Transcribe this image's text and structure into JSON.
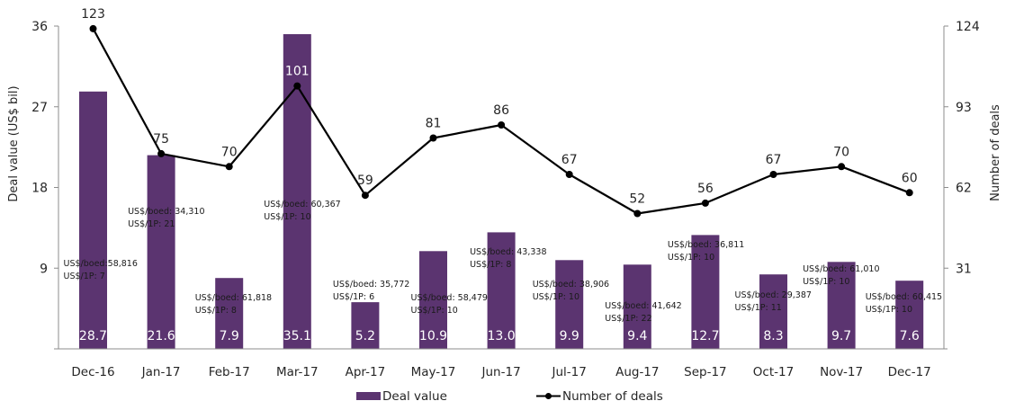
{
  "chart_data": {
    "type": "bar",
    "title": "",
    "categories": [
      "Dec-16",
      "Jan-17",
      "Feb-17",
      "Mar-17",
      "Apr-17",
      "May-17",
      "Jun-17",
      "Jul-17",
      "Aug-17",
      "Sep-17",
      "Oct-17",
      "Nov-17",
      "Dec-17"
    ],
    "series": [
      {
        "name": "Deal value",
        "type": "bar",
        "axis": "left",
        "color": "#5B3470",
        "values": [
          28.7,
          21.6,
          7.9,
          35.1,
          5.2,
          10.9,
          13.0,
          9.9,
          9.4,
          12.7,
          8.3,
          9.7,
          7.6
        ],
        "value_labels": [
          "28.7",
          "21.6",
          "7.9",
          "35.1",
          "5.2",
          "10.9",
          "13.0",
          "9.9",
          "9.4",
          "12.7",
          "8.3",
          "9.7",
          "7.6"
        ]
      },
      {
        "name": "Number of deals",
        "type": "line",
        "axis": "right",
        "color": "#000000",
        "values": [
          123,
          75,
          70,
          101,
          59,
          81,
          86,
          67,
          52,
          56,
          67,
          70,
          60
        ],
        "value_labels": [
          "123",
          "75",
          "70",
          "101",
          "59",
          "81",
          "86",
          "67",
          "52",
          "56",
          "67",
          "70",
          "60"
        ]
      }
    ],
    "annotations": [
      {
        "boed": "US$/boed:58,816",
        "onep": "US$/1P: 7"
      },
      {
        "boed": "US$/boed: 34,310",
        "onep": "US$/1P: 21"
      },
      {
        "boed": "US$/boed: 61,818",
        "onep": "US$/1P: 8"
      },
      {
        "boed": "US$/boed: 60,367",
        "onep": "US$/1P: 10"
      },
      {
        "boed": "US$/boed: 35,772",
        "onep": "US$/1P: 6"
      },
      {
        "boed": "US$/boed: 58,479",
        "onep": "US$/1P: 10"
      },
      {
        "boed": "US$/boed: 43,338",
        "onep": "US$/1P: 8"
      },
      {
        "boed": "US$/boed: 38,906",
        "onep": "US$/1P: 10"
      },
      {
        "boed": "US$/boed: 41,642",
        "onep": "US$/1P: 22"
      },
      {
        "boed": "US$/boed: 36,811",
        "onep": "US$/1P: 10"
      },
      {
        "boed": "US$/boed: 29,387",
        "onep": "US$/1P: 11"
      },
      {
        "boed": "US$/boed: 61,010",
        "onep": "US$/1P: 10"
      },
      {
        "boed": "US$/boed: 60,415",
        "onep": "US$/1P: 10"
      }
    ],
    "y_left": {
      "label": "Deal value (US$ bil)",
      "range": [
        0,
        36
      ],
      "ticks": [
        9,
        18,
        27,
        36
      ],
      "tick_labels": [
        "9",
        "18",
        "27",
        "36"
      ]
    },
    "y_right": {
      "label": "Number of deals",
      "range": [
        0,
        124
      ],
      "ticks": [
        31,
        62,
        93,
        124
      ],
      "tick_labels": [
        "31",
        "62",
        "93",
        "124"
      ]
    },
    "xlabel": "",
    "grid": false,
    "legend": {
      "placement": "bottom-center",
      "entries": [
        "Deal value",
        "Number of deals"
      ]
    }
  }
}
